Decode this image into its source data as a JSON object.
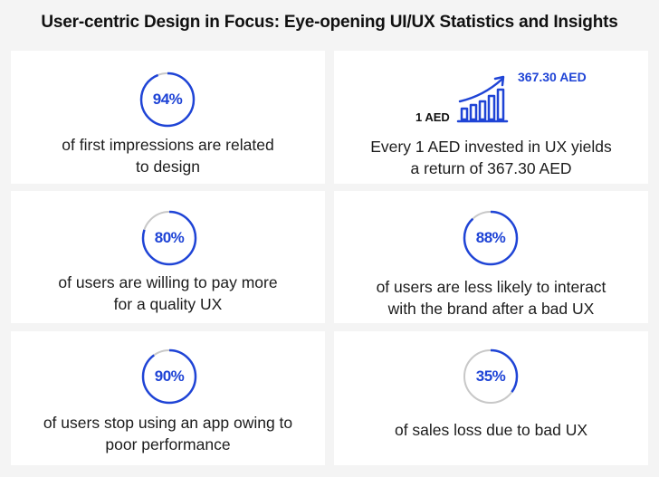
{
  "title": "User-centric Design in Focus: Eye-opening UI/UX Statistics and Insights",
  "colors": {
    "accent": "#1f44d6",
    "ring_track": "#c8c8c8",
    "card_bg": "#ffffff",
    "page_bg": "#f4f4f4"
  },
  "cards": [
    {
      "value": "94%",
      "percent": 94,
      "lines": [
        "of first impressions are related",
        "to design"
      ]
    },
    {
      "roi_low": "1 AED",
      "roi_high": "367.30 AED",
      "lines": [
        "Every 1 AED invested in UX yields",
        "a return of 367.30 AED"
      ]
    },
    {
      "value": "80%",
      "percent": 80,
      "lines": [
        "of users are willing to pay more",
        "for a quality UX"
      ]
    },
    {
      "value": "88%",
      "percent": 88,
      "lines": [
        "of users are less likely to interact",
        "with the brand after a bad UX"
      ]
    },
    {
      "value": "90%",
      "percent": 90,
      "lines": [
        "of users stop using an app owing to",
        "poor performance"
      ]
    },
    {
      "value": "35%",
      "percent": 35,
      "lines": [
        "of sales loss due to bad UX"
      ]
    }
  ]
}
